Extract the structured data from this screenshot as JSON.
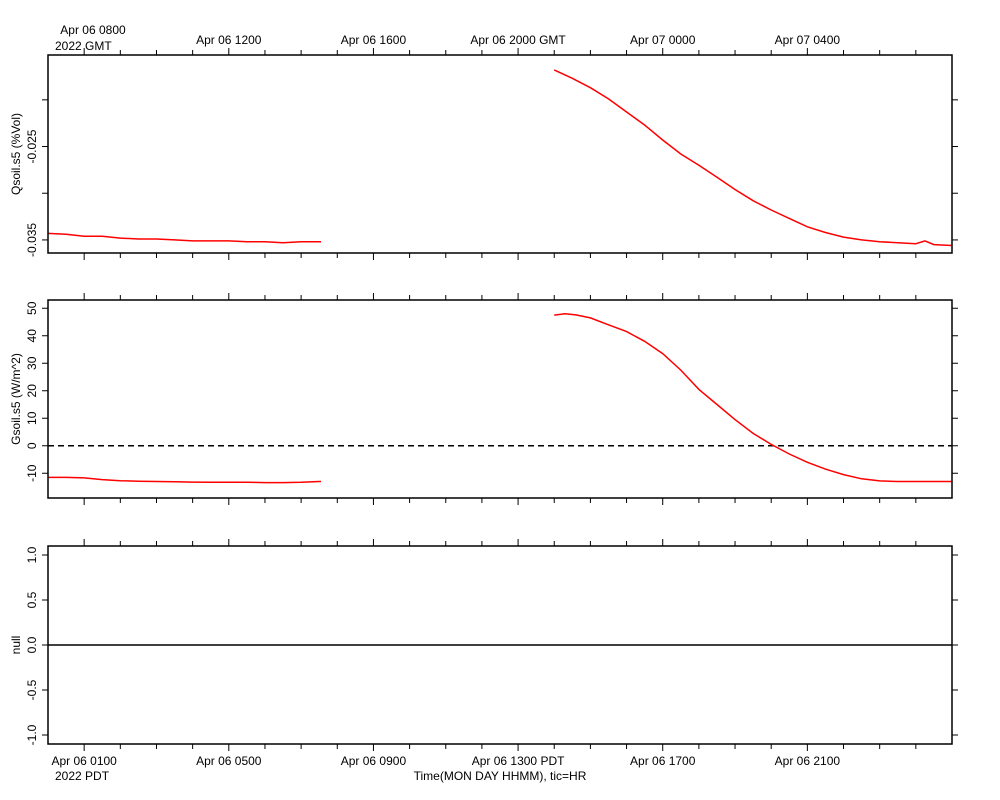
{
  "chart_data": [
    {
      "type": "line",
      "ylabel": "Qsoil.s5 (%Vol)",
      "yticks": [
        "-0.025",
        "-0.035"
      ],
      "yrange": [
        -0.0364,
        -0.0152
      ],
      "x_axis_unit": "hours since Apr 06 0100 PDT",
      "series": [
        {
          "color": "#ff0000",
          "segments": [
            {
              "x": [
                -1.0,
                -0.5,
                0.0,
                0.5,
                1.0,
                1.5,
                2.0,
                2.5,
                3.0,
                3.5,
                4.0,
                4.5,
                5.0,
                5.5,
                6.0,
                6.5,
                6.55
              ],
              "y": [
                -0.0343,
                -0.0344,
                -0.0346,
                -0.0346,
                -0.0348,
                -0.0349,
                -0.0349,
                -0.035,
                -0.0351,
                -0.0351,
                -0.0351,
                -0.0352,
                -0.0352,
                -0.0353,
                -0.0352,
                -0.0352,
                -0.0352
              ]
            },
            {
              "x": [
                13.0,
                13.5,
                14.0,
                14.5,
                15.0,
                15.5,
                16.0,
                16.5,
                17.0,
                17.5,
                18.0,
                18.5,
                19.0,
                19.5,
                20.0,
                20.5,
                21.0,
                21.5,
                22.0,
                22.5,
                23.0,
                23.25,
                23.5,
                24.0
              ],
              "y": [
                -0.0168,
                -0.0177,
                -0.0187,
                -0.0199,
                -0.0213,
                -0.0227,
                -0.0243,
                -0.0258,
                -0.027,
                -0.0283,
                -0.0296,
                -0.0308,
                -0.0318,
                -0.0327,
                -0.0336,
                -0.0342,
                -0.0347,
                -0.035,
                -0.0352,
                -0.0353,
                -0.0354,
                -0.0351,
                -0.0355,
                -0.0356
              ]
            }
          ]
        }
      ]
    },
    {
      "type": "line",
      "ylabel": "Gsoil.s5 (W/m^2)",
      "yticks": [
        "50",
        "40",
        "30",
        "20",
        "10",
        "0",
        "-10"
      ],
      "ylim": [
        -19,
        53
      ],
      "zero_line": "dashed",
      "series": [
        {
          "color": "#ff0000",
          "segments": [
            {
              "x": [
                -1.0,
                -0.5,
                0.0,
                0.5,
                1.0,
                1.5,
                2.0,
                2.5,
                3.0,
                3.5,
                4.0,
                4.5,
                5.0,
                5.5,
                6.0,
                6.5,
                6.55
              ],
              "y": [
                -11.5,
                -11.5,
                -11.7,
                -12.3,
                -12.7,
                -12.9,
                -13.0,
                -13.1,
                -13.2,
                -13.3,
                -13.3,
                -13.3,
                -13.4,
                -13.4,
                -13.3,
                -13.0,
                -13.0
              ]
            },
            {
              "x": [
                13.0,
                13.3,
                13.6,
                14.0,
                14.5,
                15.0,
                15.5,
                16.0,
                16.5,
                17.0,
                17.5,
                18.0,
                18.5,
                19.0,
                19.5,
                20.0,
                20.5,
                21.0,
                21.5,
                22.0,
                22.5,
                23.0,
                23.5,
                24.0
              ],
              "y": [
                47.5,
                48.0,
                47.6,
                46.5,
                44.0,
                41.5,
                38.0,
                33.5,
                27.5,
                20.5,
                15.0,
                9.5,
                4.5,
                0.5,
                -3.0,
                -6.0,
                -8.5,
                -10.5,
                -12.0,
                -12.8,
                -13.0,
                -13.0,
                -13.0,
                -13.0
              ]
            }
          ]
        }
      ]
    },
    {
      "type": "line",
      "ylabel": "null",
      "yticks": [
        "1.0",
        "0.5",
        "0.0",
        "-0.5",
        "-1.0"
      ],
      "ylim": [
        -1.1,
        1.1
      ],
      "series": [
        {
          "color": "#000000",
          "segments": [
            {
              "x": [
                -1.0,
                24.0
              ],
              "y": [
                0,
                0
              ]
            }
          ]
        }
      ]
    }
  ],
  "time_axis": {
    "top_ticks": [
      "Apr 06 1200",
      "Apr 06 1600",
      "Apr 06 2000 GMT",
      "Apr 07 0000",
      "Apr 07 0400"
    ],
    "top_first_line1": "Apr 06 0800",
    "top_first_line2": "2022 GMT",
    "bottom_ticks": [
      "Apr 06 0100",
      "Apr 06 0500",
      "Apr 06 0900",
      "Apr 06 1300 PDT",
      "Apr 06 1700",
      "Apr 06 2100"
    ],
    "bottom_first_line2": "2022 PDT",
    "xlabel": "Time(MON DAY HHMM), tic=HR"
  }
}
